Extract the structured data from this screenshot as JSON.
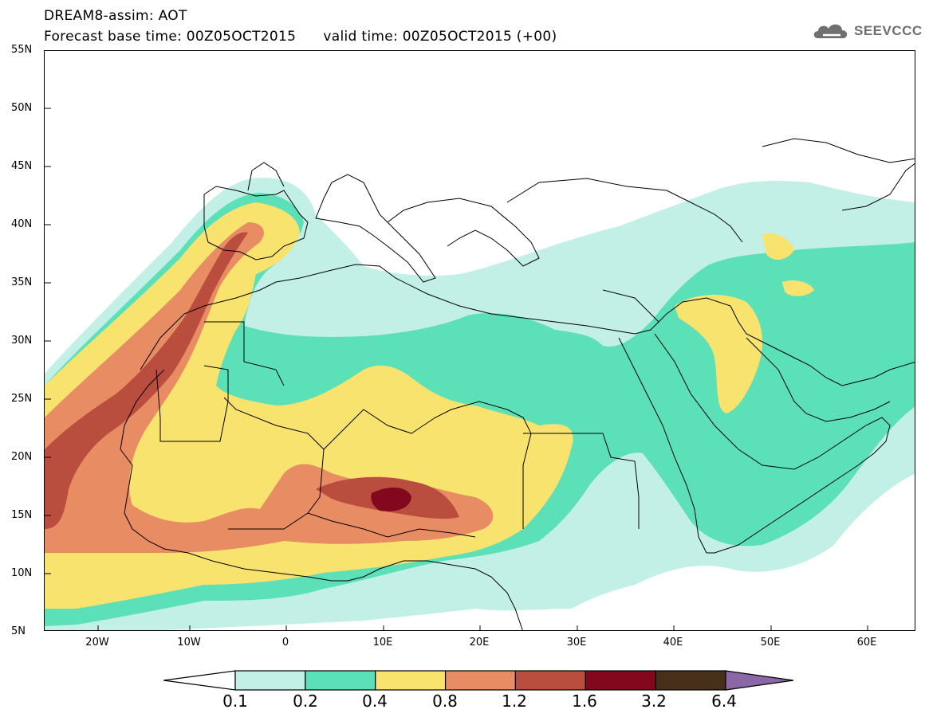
{
  "header": {
    "line1": "DREAM8-assim: AOT",
    "line2": "Forecast base time: 00Z05OCT2015      valid time: 00Z05OCT2015 (+00)"
  },
  "logo": {
    "text": "SEEVCCC",
    "icon": "cloud-icon"
  },
  "map": {
    "variable": "AOT",
    "lat_labels": [
      "55N",
      "50N",
      "45N",
      "40N",
      "35N",
      "30N",
      "25N",
      "20N",
      "15N",
      "10N",
      "5N"
    ],
    "lon_labels": [
      "20W",
      "10W",
      "0",
      "10E",
      "20E",
      "30E",
      "40E",
      "50E",
      "60E"
    ],
    "extent": {
      "lon_min": -25,
      "lon_max": 65,
      "lat_min": 5,
      "lat_max": 55
    }
  },
  "legend": {
    "thresholds": [
      "0.1",
      "0.2",
      "0.4",
      "0.8",
      "1.2",
      "1.6",
      "3.2",
      "6.4"
    ],
    "colors": [
      "#c2efe6",
      "#5ce0b8",
      "#f8e36f",
      "#e88c63",
      "#b94e3f",
      "#83071d",
      "#46301a"
    ],
    "below_color": "#ffffff",
    "above_color": "#8c67a8"
  }
}
